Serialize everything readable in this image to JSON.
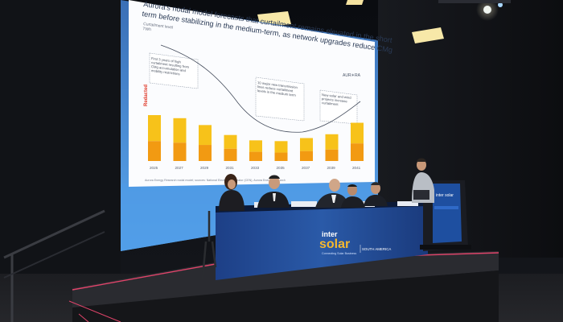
{
  "slide": {
    "title_line1": "Aurora's nodal model forecasts that curtailment remains elevated in the short",
    "title_line2": "term before stabilizing in the medium-term, as network upgrades reduce CMg",
    "subtitle_line1": "Curtailment level",
    "subtitle_line2": "TWh",
    "brand": "AUR☀RA",
    "redacted_label": "Redacted",
    "years": [
      "2025",
      "2027",
      "2029",
      "2031",
      "2033",
      "2035",
      "2037",
      "2039",
      "2041"
    ],
    "chart_data": {
      "type": "bar",
      "categories": [
        "2025",
        "2027",
        "2029",
        "2031",
        "2033",
        "2035",
        "2037",
        "2039",
        "2041"
      ],
      "series": [
        {
          "values": [
            6.0,
            5.6,
            4.7,
            3.4,
            2.7,
            2.6,
            3.0,
            3.5,
            5.0
          ]
        },
        {
          "values": [
            2.6,
            2.4,
            2.1,
            1.6,
            1.2,
            1.1,
            1.3,
            1.5,
            2.3
          ]
        }
      ]
    },
    "annotations": [
      "First 3 years of high curtailment resulting from CMg accumulation and mobility restrictions",
      "10 major new transmission lines reduce curtailment levels in the medium term",
      "New solar and wind projects increase curtailment"
    ],
    "footnote": "Aurora Energy Research nodal model; sources: National Electric Coordinator (CEN), Aurora Energy Research",
    "colors": {
      "bar_light": "#f7c21a",
      "bar_dark": "#f29a12",
      "slide_bg": "#ffffff",
      "screen_edge": "#4a90d8"
    }
  },
  "banner": {
    "brand_line1": "inter",
    "brand_line2": "solar",
    "tagline": "Connecting Solar Business",
    "region": "SOUTH AMERICA"
  },
  "podium": {
    "logo": "inter solar"
  }
}
